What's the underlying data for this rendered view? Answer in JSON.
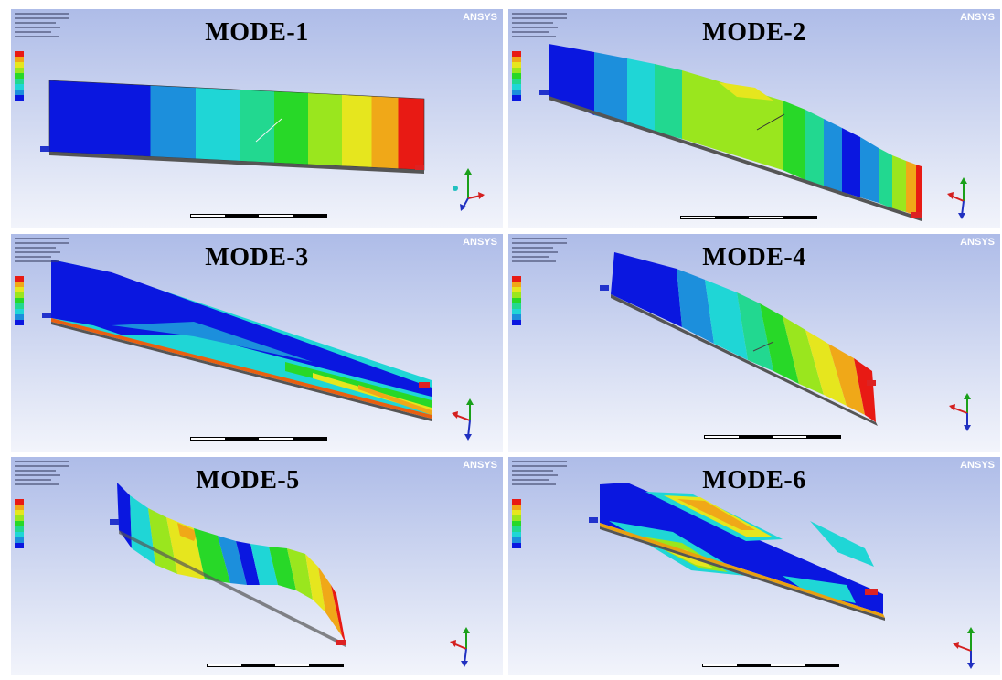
{
  "brand": "ANSYS",
  "panels": [
    {
      "title": "MODE-1"
    },
    {
      "title": "MODE-2"
    },
    {
      "title": "MODE-3"
    },
    {
      "title": "MODE-4"
    },
    {
      "title": "MODE-5"
    },
    {
      "title": "MODE-6"
    }
  ],
  "colors": {
    "background_top": "#aebce8",
    "background_bottom": "#f2f4fb",
    "contour": [
      "#0a17e0",
      "#1c8fdc",
      "#1fd6d6",
      "#22d890",
      "#28d828",
      "#9ae61e",
      "#e6e61e",
      "#f0a818",
      "#e81a14"
    ]
  }
}
